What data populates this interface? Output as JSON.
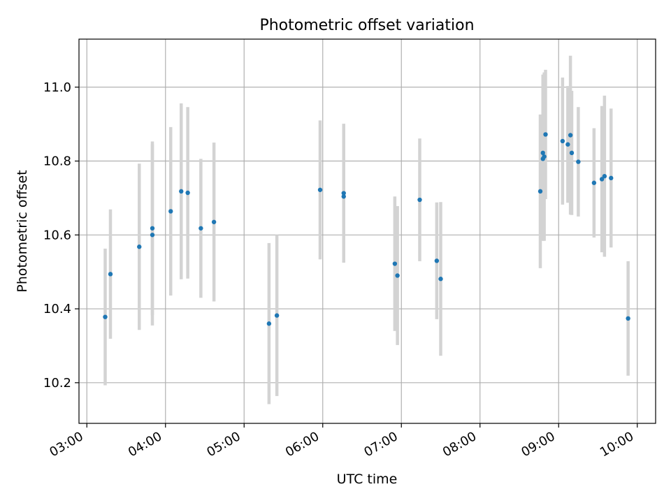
{
  "chart_data": {
    "type": "scatter",
    "title": "Photometric offset variation",
    "xlabel": "UTC time",
    "ylabel": "Photometric offset",
    "grid": true,
    "x_ticks": [
      "03:00",
      "04:00",
      "05:00",
      "06:00",
      "07:00",
      "08:00",
      "09:00",
      "10:00"
    ],
    "y_ticks": [
      "10.2",
      "10.4",
      "10.6",
      "10.8",
      "11.0"
    ],
    "xlim": [
      "02:54",
      "10:14"
    ],
    "ylim": [
      10.09,
      11.13
    ],
    "colors": {
      "marker": "#1f77b4",
      "errorbar": "#d3d3d3",
      "grid": "#b0b0b0"
    },
    "series": [
      {
        "points": [
          {
            "x": "03:14",
            "y": 10.378,
            "yerr": 0.185
          },
          {
            "x": "03:18",
            "y": 10.494,
            "yerr": 0.175
          },
          {
            "x": "03:40",
            "y": 10.568,
            "yerr": 0.225
          },
          {
            "x": "03:50",
            "y": 10.618,
            "yerr": 0.235
          },
          {
            "x": "03:50",
            "y": 10.6,
            "yerr": 0.245
          },
          {
            "x": "04:04",
            "y": 10.664,
            "yerr": 0.228
          },
          {
            "x": "04:12",
            "y": 10.718,
            "yerr": 0.238
          },
          {
            "x": "04:17",
            "y": 10.714,
            "yerr": 0.232
          },
          {
            "x": "04:27",
            "y": 10.618,
            "yerr": 0.188
          },
          {
            "x": "04:37",
            "y": 10.635,
            "yerr": 0.215
          },
          {
            "x": "05:19",
            "y": 10.36,
            "yerr": 0.218
          },
          {
            "x": "05:25",
            "y": 10.382,
            "yerr": 0.218
          },
          {
            "x": "05:58",
            "y": 10.722,
            "yerr": 0.188
          },
          {
            "x": "06:16",
            "y": 10.713,
            "yerr": 0.188
          },
          {
            "x": "06:16",
            "y": 10.704,
            "yerr": 0.178
          },
          {
            "x": "06:55",
            "y": 10.522,
            "yerr": 0.182
          },
          {
            "x": "06:57",
            "y": 10.49,
            "yerr": 0.188
          },
          {
            "x": "07:14",
            "y": 10.695,
            "yerr": 0.166
          },
          {
            "x": "07:27",
            "y": 10.53,
            "yerr": 0.158
          },
          {
            "x": "07:30",
            "y": 10.481,
            "yerr": 0.208
          },
          {
            "x": "08:46",
            "y": 10.718,
            "yerr": 0.208
          },
          {
            "x": "08:48",
            "y": 10.822,
            "yerr": 0.212
          },
          {
            "x": "08:48",
            "y": 10.806,
            "yerr": 0.222
          },
          {
            "x": "08:49",
            "y": 10.812,
            "yerr": 0.228
          },
          {
            "x": "08:50",
            "y": 10.872,
            "yerr": 0.175
          },
          {
            "x": "09:03",
            "y": 10.854,
            "yerr": 0.172
          },
          {
            "x": "09:07",
            "y": 10.845,
            "yerr": 0.158
          },
          {
            "x": "09:09",
            "y": 10.87,
            "yerr": 0.215
          },
          {
            "x": "09:10",
            "y": 10.822,
            "yerr": 0.168
          },
          {
            "x": "09:15",
            "y": 10.798,
            "yerr": 0.148
          },
          {
            "x": "09:27",
            "y": 10.741,
            "yerr": 0.148
          },
          {
            "x": "09:33",
            "y": 10.751,
            "yerr": 0.198
          },
          {
            "x": "09:35",
            "y": 10.759,
            "yerr": 0.218
          },
          {
            "x": "09:40",
            "y": 10.754,
            "yerr": 0.188
          },
          {
            "x": "09:53",
            "y": 10.374,
            "yerr": 0.155
          }
        ]
      }
    ]
  }
}
